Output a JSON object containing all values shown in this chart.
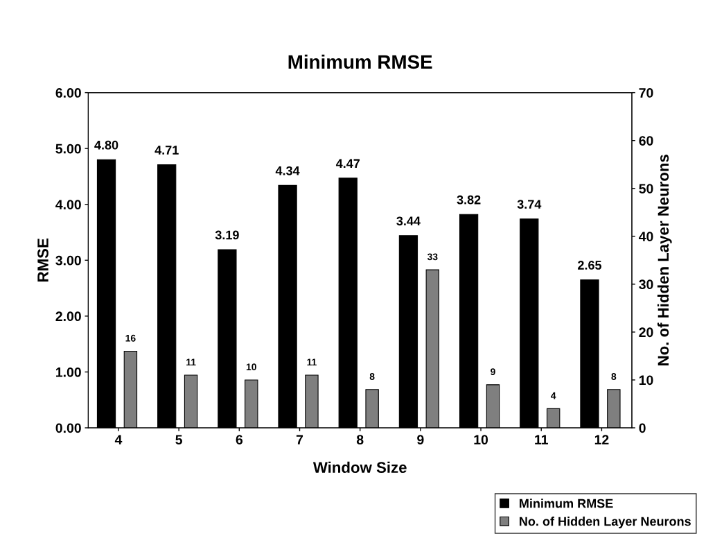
{
  "chart_data": {
    "type": "bar",
    "title": "Minimum RMSE",
    "xlabel": "Window Size",
    "ylabel": "RMSE",
    "y2label": "No. of Hidden Layer Neurons",
    "categories": [
      "4",
      "5",
      "6",
      "7",
      "8",
      "9",
      "10",
      "11",
      "12"
    ],
    "series": [
      {
        "name": "Minimum RMSE",
        "color": "#000000",
        "values": [
          4.8,
          4.71,
          3.19,
          4.34,
          4.47,
          3.44,
          3.82,
          3.74,
          2.65
        ],
        "value_labels": [
          "4.80",
          "4.71",
          "3.19",
          "4.34",
          "4.47",
          "3.44",
          "3.82",
          "3.74",
          "2.65"
        ]
      },
      {
        "name": "No. of Hidden Layer Neurons",
        "color": "#7f7f7f",
        "axis": "y2",
        "values": [
          16,
          11,
          10,
          11,
          8,
          33,
          9,
          4,
          8
        ],
        "value_labels": [
          "16",
          "11",
          "10",
          "11",
          "8",
          "33",
          "9",
          "4",
          "8"
        ]
      }
    ],
    "ylim": [
      0,
      6
    ],
    "yticks": [
      {
        "value": 0,
        "label": "0.00"
      },
      {
        "value": 1,
        "label": "1.00"
      },
      {
        "value": 2,
        "label": "2.00"
      },
      {
        "value": 3,
        "label": "3.00"
      },
      {
        "value": 4,
        "label": "4.00"
      },
      {
        "value": 5,
        "label": "5.00"
      },
      {
        "value": 6,
        "label": "6.00"
      }
    ],
    "y2lim": [
      0,
      70
    ],
    "y2ticks": [
      0,
      10,
      20,
      30,
      40,
      50,
      60,
      70
    ],
    "grid": false,
    "legend": "bottom right"
  }
}
